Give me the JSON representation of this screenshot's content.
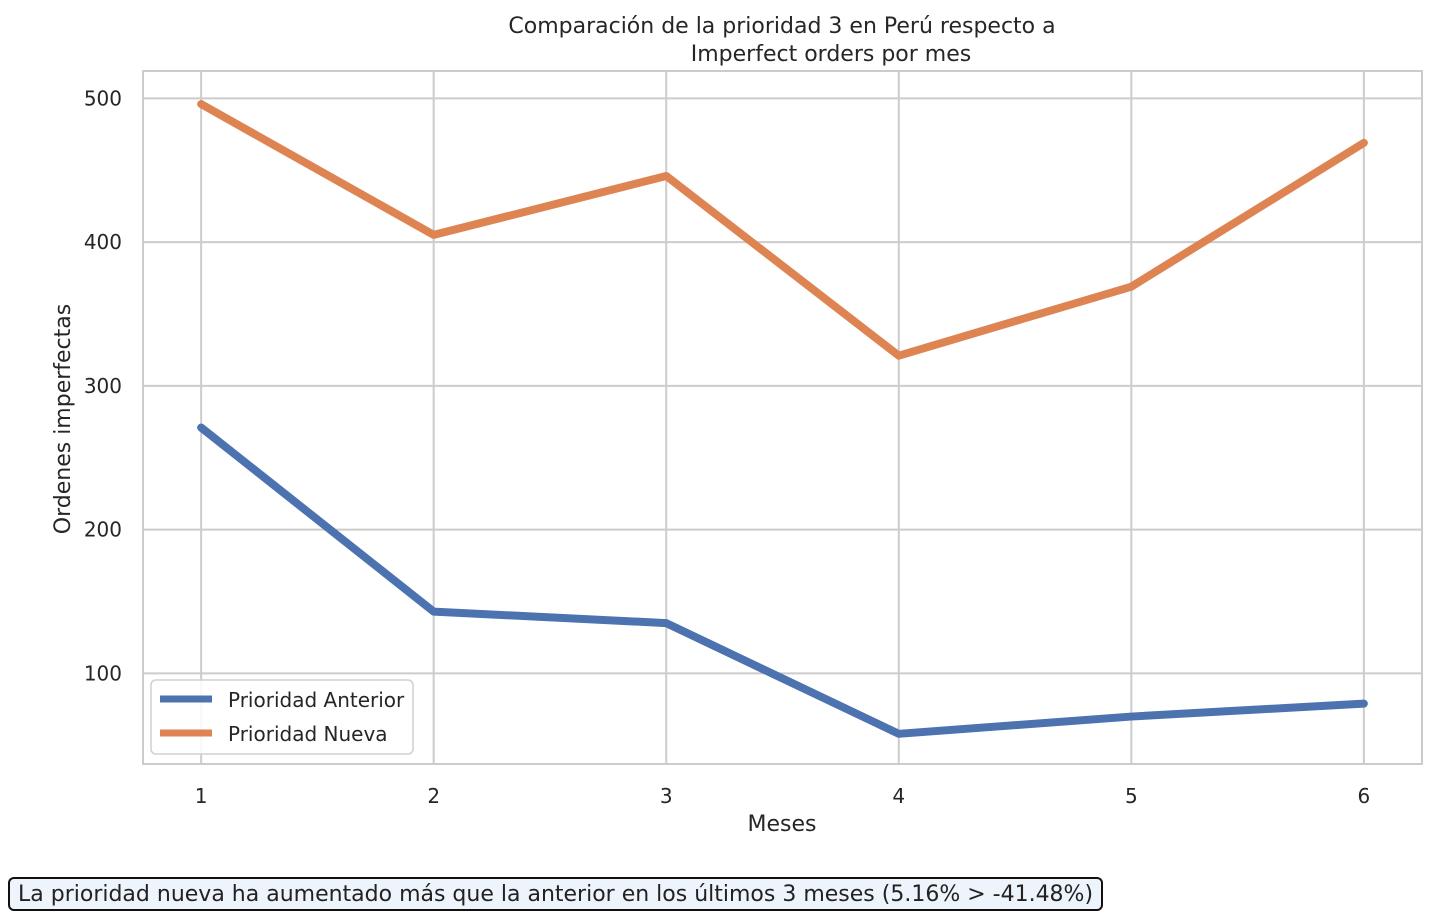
{
  "chart_data": {
    "type": "line",
    "title_line1": "Comparación de la prioridad 3 en Perú respecto a",
    "title_line2": "Imperfect orders por mes",
    "xlabel": "Meses",
    "ylabel": "Ordenes imperfectas",
    "x": [
      1,
      2,
      3,
      4,
      5,
      6
    ],
    "x_ticks": [
      "1",
      "2",
      "3",
      "4",
      "5",
      "6"
    ],
    "y_ticks": [
      100,
      200,
      300,
      400,
      500
    ],
    "ylim": [
      37,
      519
    ],
    "xlim": [
      0.75,
      6.25
    ],
    "grid": true,
    "legend_position": "lower-left",
    "series": [
      {
        "name": "Prioridad Anterior",
        "color": "#4c72b0",
        "values": [
          271,
          143,
          135,
          58,
          70,
          79
        ]
      },
      {
        "name": "Prioridad Nueva",
        "color": "#dd8452",
        "values": [
          496,
          405,
          446,
          321,
          369,
          469
        ]
      }
    ]
  },
  "annotation": {
    "text": "La prioridad nueva ha aumentado más que la anterior en los últimos 3 meses (5.16% > -41.48%)"
  }
}
